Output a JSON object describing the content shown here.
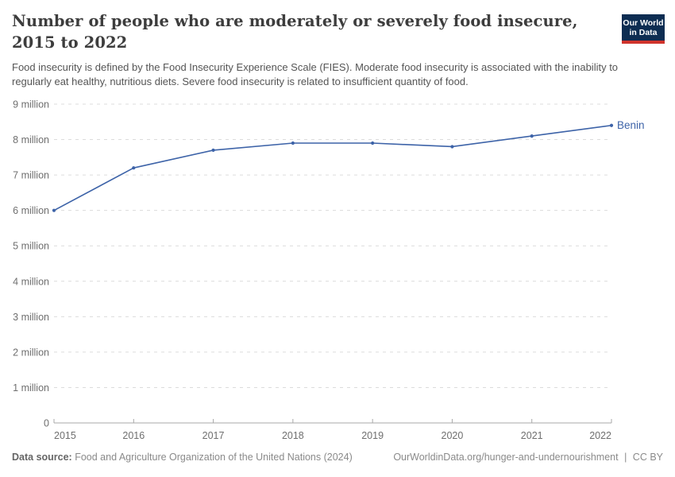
{
  "header": {
    "title": "Number of people who are moderately or severely food insecure, 2015 to 2022",
    "title_line1": "Number of people who are moderately or severely food insecure,",
    "title_line2": "2015 to 2022",
    "subtitle": "Food insecurity is defined by the Food Insecurity Experience Scale (FIES). Moderate food insecurity is associated with the inability to regularly eat healthy, nutritious diets. Severe food insecurity is related to insufficient quantity of food.",
    "logo_line1": "Our World",
    "logo_line2": "in Data"
  },
  "chart_data": {
    "type": "line",
    "title": "Number of people who are moderately or severely food insecure, 2015 to 2022",
    "x": [
      "2015",
      "2016",
      "2017",
      "2018",
      "2019",
      "2020",
      "2021",
      "2022"
    ],
    "series": [
      {
        "name": "Benin",
        "values": [
          6.0,
          7.2,
          7.7,
          7.9,
          7.9,
          7.8,
          8.1,
          8.4
        ],
        "color": "#3d63a8"
      }
    ],
    "unit": "million",
    "ylim": [
      0,
      9
    ],
    "ytick_values": [
      0,
      1,
      2,
      3,
      4,
      5,
      6,
      7,
      8,
      9
    ],
    "ytick_labels": [
      "0",
      "1 million",
      "2 million",
      "3 million",
      "4 million",
      "5 million",
      "6 million",
      "7 million",
      "8 million",
      "9 million"
    ],
    "grid": "horizontal-dashed",
    "legend_position": "end-of-line-label",
    "colors": {
      "line": "#3d63a8",
      "grid": "#dcdcdc",
      "axis": "#a8a8a8",
      "tick_text": "#6f6f6f"
    }
  },
  "footer": {
    "source_label": "Data source:",
    "source_text": "Food and Agriculture Organization of the United Nations (2024)",
    "link_text": "OurWorldinData.org/hunger-and-undernourishment",
    "separator": "|",
    "license": "CC BY"
  }
}
